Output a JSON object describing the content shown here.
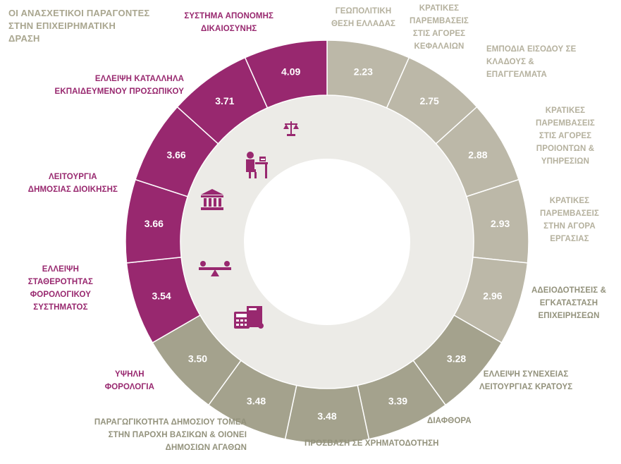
{
  "colors": {
    "purple": "#98286f",
    "light_gray": "#bcb8a8",
    "mid_gray": "#a4a28d",
    "dark_gray": "#93927c",
    "inner_ring": "#ecebe7",
    "label_gray": "#b5b19e",
    "title_gray": "#a9a68f"
  },
  "chart_data": {
    "type": "donut",
    "title": "ΟΙ ΑΝΑΣΧΕΤΙΚΟΙ ΠΑΡΑΓΟΝΤΕΣ\nΣΤΗΝ ΕΠΙΧΕΙΡΗΜΑΤΙΚΗ\nΔΡΑΣΗ",
    "segments": [
      {
        "label": "ΓΕΩΠΟΛΙΤΙΚΗ\nΘΕΣΗ ΕΛΛΑΔΑΣ",
        "value": 2.23,
        "value_label": "2.23",
        "group": "light"
      },
      {
        "label": "ΚΡΑΤΙΚΕΣ\nΠΑΡΕΜΒΑΣΕΙΣ\nΣΤΙΣ ΑΓΟΡΕΣ\nΚΕΦΑΛΑΙΩΝ",
        "value": 2.75,
        "value_label": "2.75",
        "group": "light"
      },
      {
        "label": "ΕΜΠΟΔΙΑ ΕΙΣΟΔΟΥ ΣΕ\nΚΛΑΔΟΥΣ &\nΕΠΑΓΓΕΛΜΑΤΑ",
        "value": 2.88,
        "value_label": "2.88",
        "group": "light"
      },
      {
        "label": "ΚΡΑΤΙΚΕΣ\nΠΑΡΕΜΒΑΣΕΙΣ\nΣΤΙΣ ΑΓΟΡΕΣ\nΠΡΟΙΟΝΤΩΝ &\nΥΠΗΡΕΣΙΩΝ",
        "value": 2.93,
        "value_label": "2.93",
        "group": "light"
      },
      {
        "label": "ΚΡΑΤΙΚΕΣ\nΠΑΡΕΜΒΑΣΕΙΣ\nΣΤΗΝ ΑΓΟΡΑ\nΕΡΓΑΣΙΑΣ",
        "value": 2.96,
        "value_label": "2.96",
        "group": "light"
      },
      {
        "label": "ΑΔΕΙΟΔΟΤΗΣΕΙΣ &\nΕΓΚΑΤΑΣΤΑΣΗ\nΕΠΙΧΕΙΡΗΣΕΩΝ",
        "value": 3.28,
        "value_label": "3.28",
        "group": "dark"
      },
      {
        "label": "ΕΛΛΕΙΨΗ ΣΥΝΕΧΕΙΑΣ\nΛΕΙΤΟΥΡΓΙΑΣ ΚΡΑΤΟΥΣ",
        "value": 3.39,
        "value_label": "3.39",
        "group": "dark"
      },
      {
        "label": "ΔΙΑΦΘΟΡΑ",
        "value": 3.48,
        "value_label": "3.48",
        "group": "dark"
      },
      {
        "label": "ΠΡΟΣΒΑΣΗ ΣΕ ΧΡΗΜΑΤΟΔΟΤΗΣΗ",
        "value": 3.48,
        "value_label": "3.48",
        "group": "dark"
      },
      {
        "label": "ΠΑΡΑΓΩΓΙΚΟΤΗΤΑ ΔΗΜΟΣΙΟΥ ΤΟΜΕΑ\nΣΤΗΝ ΠΑΡΟΧΗ ΒΑΣΙΚΩΝ & ΟΙΟΝΕΙ\nΔΗΜΟΣΙΩΝ ΑΓΑΘΩΝ",
        "value": 3.5,
        "value_label": "3.50",
        "group": "dark"
      },
      {
        "label": "ΥΨΗΛΗ\nΦΟΡΟΛΟΓΙΑ",
        "value": 3.54,
        "value_label": "3.54",
        "group": "purple"
      },
      {
        "label": "ΕΛΛΕΙΨΗ\nΣΤΑΘΕΡΟΤΗΤΑΣ\nΦΟΡΟΛΟΓΙΚΟΥ\nΣΥΣΤΗΜΑΤΟΣ",
        "value": 3.66,
        "value_label": "3.66",
        "group": "purple"
      },
      {
        "label": "ΛΕΙΤΟΥΡΓΙΑ\nΔΗΜΟΣΙΑΣ ΔΙΟΙΚΗΣΗΣ",
        "value": 3.66,
        "value_label": "3.66",
        "group": "purple"
      },
      {
        "label": "ΕΛΛΕΙΨΗ ΚΑΤΑΛΛΗΛΑ\nΕΚΠΑΙΔΕΥΜΕΝΟΥ ΠΡΟΣΩΠΙΚΟΥ",
        "value": 3.71,
        "value_label": "3.71",
        "group": "purple"
      },
      {
        "label": "ΣΥΣΤΗΜΑ ΑΠΟΝΟΜΗΣ\nΔΙΚΑΙΟΣΥΝΗΣ",
        "value": 4.09,
        "value_label": "4.09",
        "group": "purple"
      }
    ],
    "icons": [
      "scales-icon",
      "employee-desk-icon",
      "government-building-icon",
      "balance-seesaw-icon",
      "tax-calculator-icon"
    ]
  }
}
